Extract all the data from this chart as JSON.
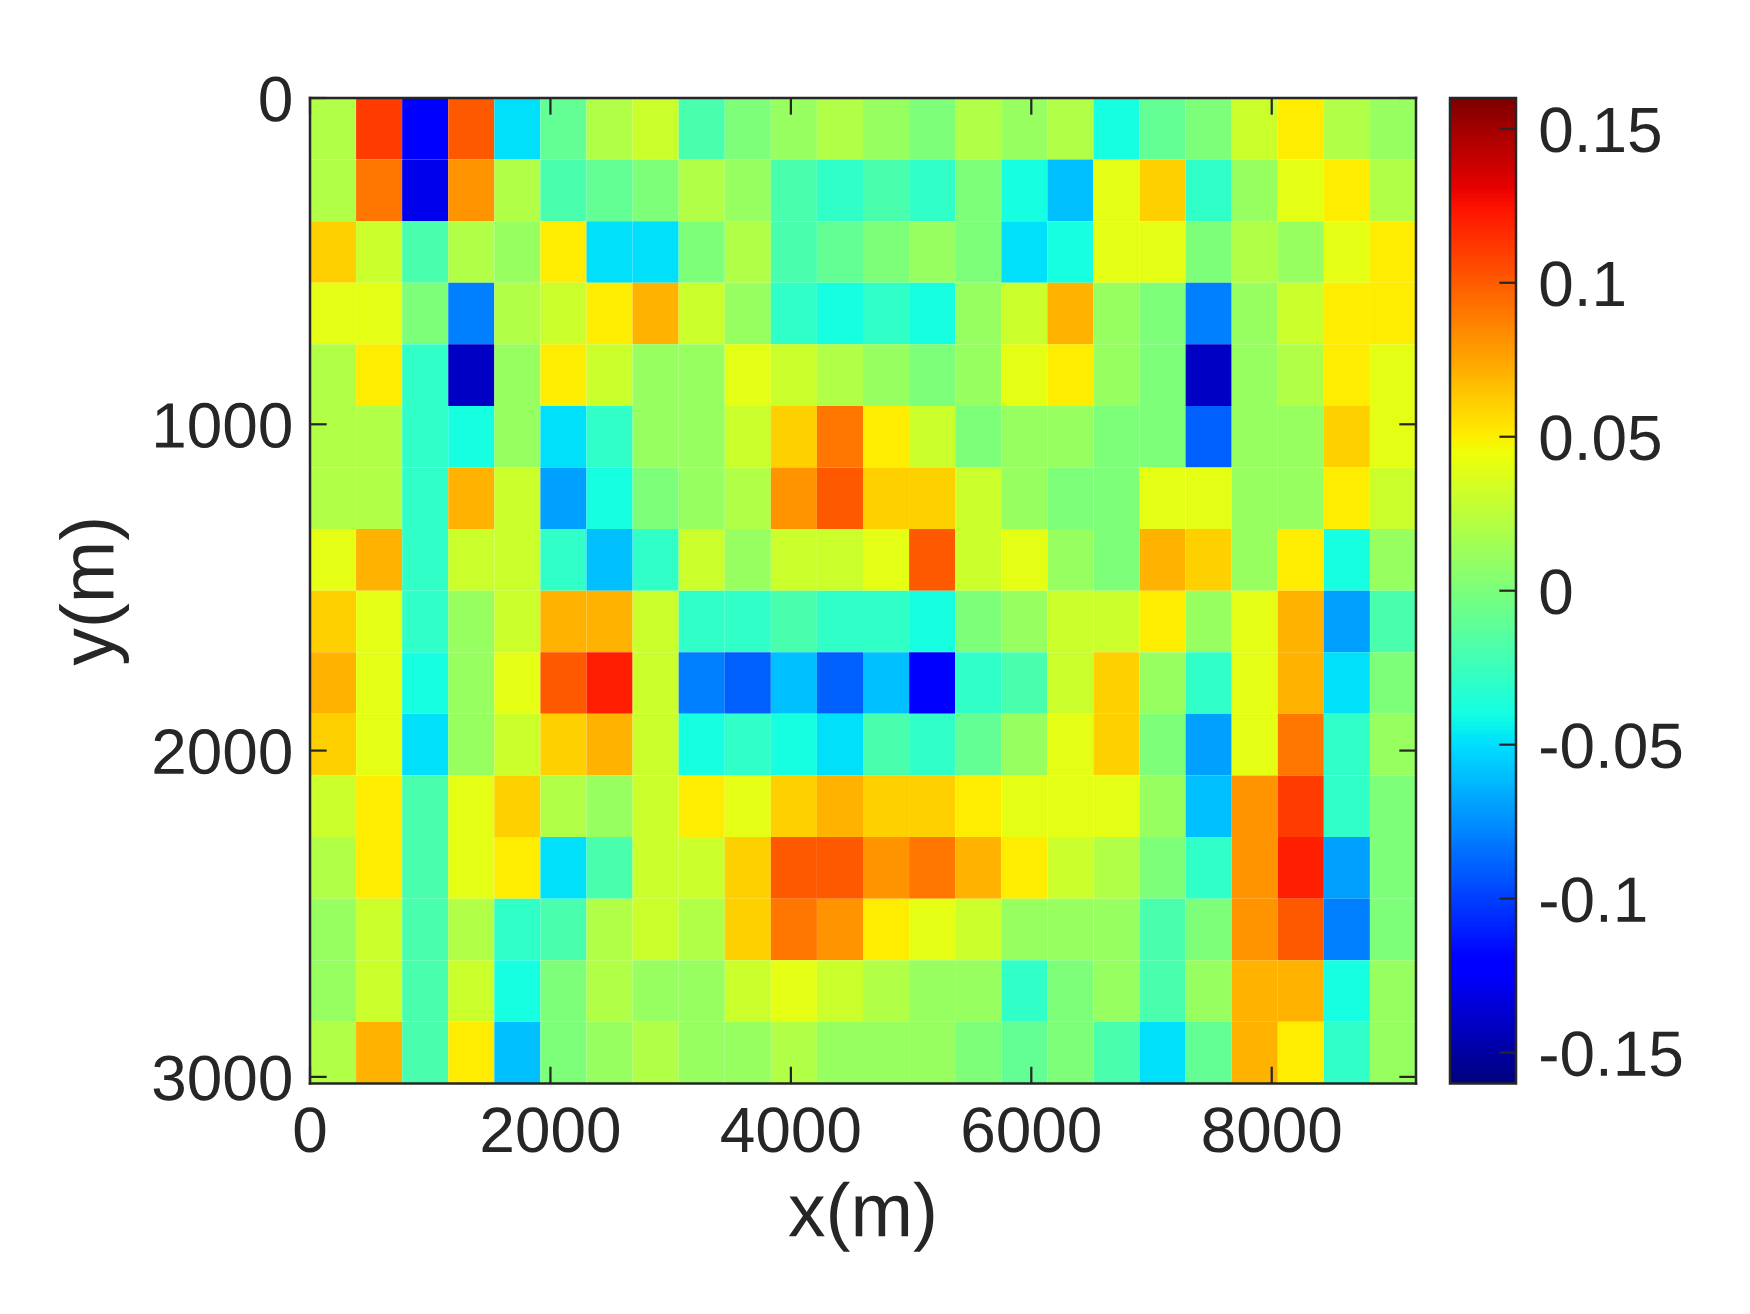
{
  "chart_data": {
    "type": "heatmap",
    "xlabel": "x(m)",
    "ylabel": "y(m)",
    "cells": [
      [
        0.02,
        0.11,
        -0.12,
        0.1,
        -0.05,
        -0.01,
        0.02,
        0.03,
        -0.02,
        0.0,
        0.01,
        0.02,
        0.01,
        0.0,
        0.02,
        0.01,
        0.02,
        -0.04,
        -0.01,
        0.0,
        0.03,
        0.05,
        0.02,
        0.01
      ],
      [
        0.02,
        0.09,
        -0.13,
        0.08,
        0.02,
        -0.02,
        -0.01,
        0.0,
        0.02,
        0.01,
        -0.02,
        -0.03,
        -0.02,
        -0.03,
        0.0,
        -0.04,
        -0.06,
        0.04,
        0.06,
        -0.03,
        0.01,
        0.04,
        0.05,
        0.02
      ],
      [
        0.06,
        0.03,
        -0.02,
        0.02,
        0.01,
        0.05,
        -0.05,
        -0.05,
        0.0,
        0.02,
        -0.02,
        -0.01,
        0.0,
        0.01,
        0.0,
        -0.05,
        -0.04,
        0.04,
        0.04,
        0.0,
        0.02,
        0.01,
        0.04,
        0.05
      ],
      [
        0.04,
        0.04,
        0.0,
        -0.08,
        0.02,
        0.03,
        0.05,
        0.07,
        0.03,
        0.01,
        -0.03,
        -0.04,
        -0.03,
        -0.04,
        0.01,
        0.03,
        0.07,
        0.01,
        0.0,
        -0.08,
        0.01,
        0.03,
        0.05,
        0.05
      ],
      [
        0.02,
        0.05,
        -0.03,
        -0.14,
        0.01,
        0.05,
        0.03,
        0.01,
        0.01,
        0.04,
        0.03,
        0.02,
        0.01,
        0.0,
        0.01,
        0.04,
        0.05,
        0.01,
        0.0,
        -0.14,
        0.01,
        0.02,
        0.05,
        0.04
      ],
      [
        0.02,
        0.02,
        -0.03,
        -0.04,
        0.01,
        -0.05,
        -0.03,
        0.01,
        0.01,
        0.03,
        0.06,
        0.09,
        0.05,
        0.03,
        0.0,
        0.01,
        0.01,
        0.0,
        0.0,
        -0.09,
        0.01,
        0.01,
        0.06,
        0.04
      ],
      [
        0.02,
        0.02,
        -0.03,
        0.07,
        0.03,
        -0.07,
        -0.04,
        0.0,
        0.01,
        0.02,
        0.08,
        0.1,
        0.06,
        0.06,
        0.03,
        0.01,
        0.0,
        0.0,
        0.04,
        0.04,
        0.01,
        0.01,
        0.05,
        0.03
      ],
      [
        0.04,
        0.07,
        -0.03,
        0.03,
        0.03,
        -0.03,
        -0.06,
        -0.03,
        0.03,
        0.01,
        0.03,
        0.03,
        0.04,
        0.1,
        0.03,
        0.04,
        0.01,
        0.0,
        0.07,
        0.06,
        0.01,
        0.05,
        -0.04,
        0.01
      ],
      [
        0.06,
        0.04,
        -0.03,
        0.01,
        0.03,
        0.07,
        0.07,
        0.03,
        -0.03,
        -0.03,
        -0.02,
        -0.03,
        -0.03,
        -0.04,
        0.0,
        0.01,
        0.03,
        0.03,
        0.05,
        0.01,
        0.04,
        0.07,
        -0.07,
        -0.02
      ],
      [
        0.07,
        0.04,
        -0.04,
        0.01,
        0.04,
        0.1,
        0.12,
        0.03,
        -0.08,
        -0.09,
        -0.06,
        -0.09,
        -0.06,
        -0.12,
        -0.03,
        -0.02,
        0.03,
        0.06,
        0.01,
        -0.03,
        0.04,
        0.07,
        -0.05,
        0.0
      ],
      [
        0.06,
        0.04,
        -0.05,
        0.01,
        0.03,
        0.06,
        0.07,
        0.03,
        -0.04,
        -0.03,
        -0.04,
        -0.05,
        -0.02,
        -0.03,
        -0.01,
        0.01,
        0.04,
        0.06,
        0.0,
        -0.07,
        0.04,
        0.09,
        -0.03,
        0.01
      ],
      [
        0.03,
        0.05,
        -0.02,
        0.04,
        0.06,
        0.02,
        0.01,
        0.03,
        0.05,
        0.04,
        0.06,
        0.07,
        0.06,
        0.06,
        0.05,
        0.04,
        0.04,
        0.04,
        0.01,
        -0.06,
        0.08,
        0.11,
        -0.03,
        0.0
      ],
      [
        0.02,
        0.05,
        -0.02,
        0.04,
        0.05,
        -0.05,
        -0.02,
        0.03,
        0.03,
        0.06,
        0.1,
        0.1,
        0.08,
        0.09,
        0.07,
        0.05,
        0.03,
        0.02,
        0.0,
        -0.03,
        0.08,
        0.12,
        -0.07,
        0.0
      ],
      [
        0.01,
        0.03,
        -0.02,
        0.02,
        -0.03,
        -0.02,
        0.02,
        0.03,
        0.02,
        0.06,
        0.09,
        0.08,
        0.05,
        0.04,
        0.03,
        0.01,
        0.01,
        0.01,
        -0.02,
        0.0,
        0.08,
        0.1,
        -0.08,
        0.0
      ],
      [
        0.01,
        0.03,
        -0.02,
        0.03,
        -0.04,
        0.0,
        0.02,
        0.01,
        0.01,
        0.03,
        0.04,
        0.03,
        0.02,
        0.01,
        0.01,
        -0.03,
        0.0,
        0.01,
        -0.02,
        0.01,
        0.07,
        0.07,
        -0.04,
        0.01
      ],
      [
        0.02,
        0.07,
        -0.02,
        0.05,
        -0.06,
        0.0,
        0.01,
        0.02,
        0.01,
        0.01,
        0.02,
        0.01,
        0.01,
        0.01,
        0.0,
        -0.01,
        0.0,
        -0.02,
        -0.05,
        -0.01,
        0.07,
        0.05,
        -0.03,
        0.01
      ]
    ],
    "xlim": [
      0,
      9200
    ],
    "xticks": [
      0,
      2000,
      4000,
      6000,
      8000
    ],
    "ylim": [
      3020,
      0
    ],
    "yticks": [
      0,
      1000,
      2000,
      3000
    ],
    "clim": [
      -0.16,
      0.16
    ],
    "cticks": [
      -0.15,
      -0.1,
      -0.05,
      0,
      0.05,
      0.1,
      0.15
    ]
  }
}
